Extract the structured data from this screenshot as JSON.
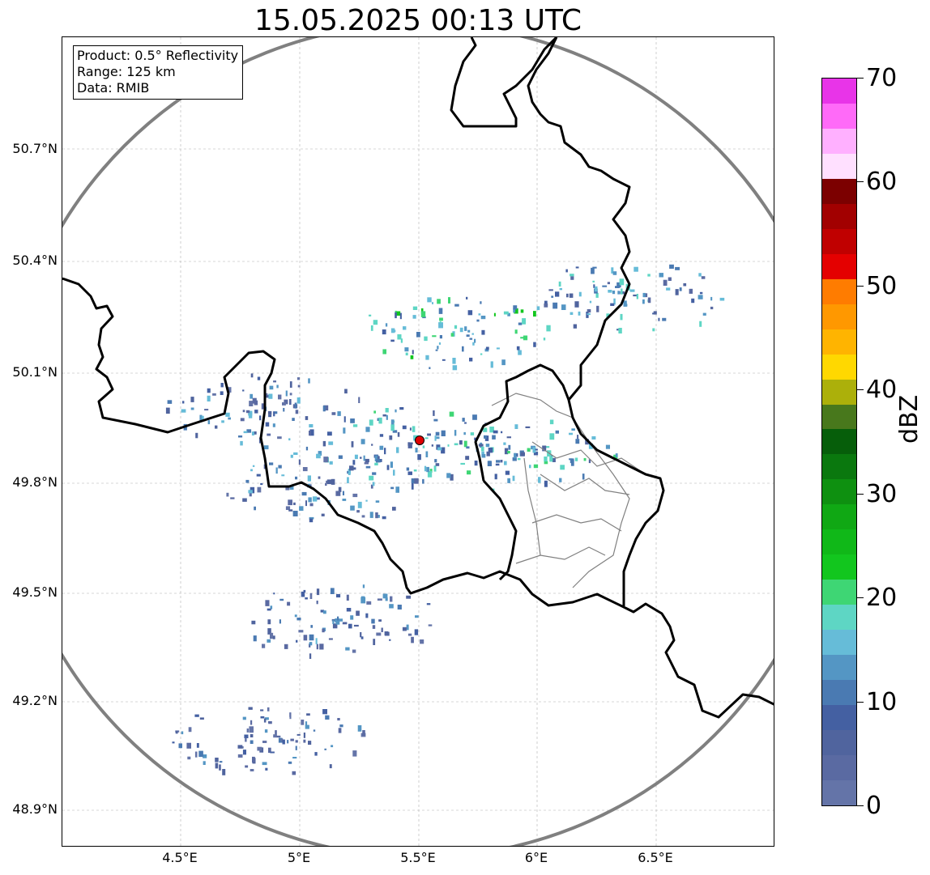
{
  "title": "15.05.2025 00:13 UTC",
  "info": {
    "product": "Product: 0.5° Reflectivity",
    "range": "Range: 125 km",
    "data": "Data: RMIB"
  },
  "axes": {
    "lat_labels": [
      "50.7°N",
      "50.4°N",
      "50.1°N",
      "49.8°N",
      "49.5°N",
      "49.2°N",
      "48.9°N"
    ],
    "lon_labels": [
      "4.5°E",
      "5°E",
      "5.5°E",
      "6°E",
      "6.5°E"
    ]
  },
  "colorbar": {
    "label": "dBZ",
    "ticks": [
      "0",
      "10",
      "20",
      "30",
      "40",
      "50",
      "60",
      "70"
    ],
    "colors": [
      "#6474a8",
      "#5a6aa2",
      "#50649e",
      "#4460a2",
      "#4a7ab2",
      "#5496c4",
      "#66bcd8",
      "#5ed6c4",
      "#3ed674",
      "#12c61e",
      "#10b818",
      "#10a814",
      "#0e9010",
      "#0a780e",
      "#065e0a",
      "#48781c",
      "#acb00a",
      "#ffd800",
      "#ffb400",
      "#ff9800",
      "#ff7c00",
      "#e40000",
      "#c00000",
      "#a20000",
      "#7c0000",
      "#ffe0ff",
      "#ffb0ff",
      "#ff6af8",
      "#e834e8"
    ]
  },
  "chart_data": {
    "type": "radar-map",
    "radar_site": {
      "lon": 5.505,
      "lat": 49.914
    },
    "range_km": 125,
    "extent": {
      "lon": [
        4.0,
        7.0
      ],
      "lat": [
        48.8,
        51.0
      ]
    },
    "echo_clusters": [
      {
        "lon": 5.45,
        "lat": 49.9,
        "dbz": 12
      },
      {
        "lon": 5.65,
        "lat": 50.2,
        "dbz": 14
      },
      {
        "lon": 5.9,
        "lat": 49.87,
        "dbz": 12
      },
      {
        "lon": 5.1,
        "lat": 49.78,
        "dbz": 8
      },
      {
        "lon": 4.85,
        "lat": 49.99,
        "dbz": 8
      },
      {
        "lon": 5.15,
        "lat": 49.42,
        "dbz": 6
      },
      {
        "lon": 4.85,
        "lat": 49.1,
        "dbz": 5
      },
      {
        "lon": 6.4,
        "lat": 50.3,
        "dbz": 10
      }
    ]
  }
}
